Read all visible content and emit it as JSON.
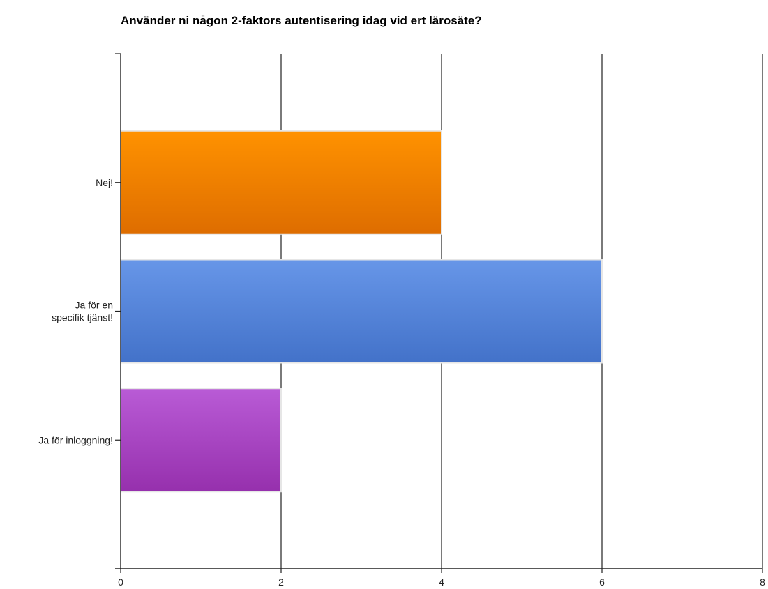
{
  "chart_data": {
    "type": "bar",
    "orientation": "horizontal",
    "title": "Använder ni någon 2-faktors autentisering idag vid ert lärosäte?",
    "xlabel": "",
    "ylabel": "",
    "categories": [
      [
        "Nej!"
      ],
      [
        "Ja för en",
        "specifik tjänst!"
      ],
      [
        "Ja för inloggning!"
      ]
    ],
    "values": [
      4,
      6,
      2
    ],
    "xlim": [
      0,
      8
    ],
    "ticks": [
      "0",
      "2",
      "4",
      "6",
      "8"
    ],
    "grid": true,
    "legend": "none",
    "colors": [
      {
        "top": "#ff9200",
        "bottom": "#de6d00"
      },
      {
        "top": "#6796e8",
        "bottom": "#4372c9"
      },
      {
        "top": "#b95bd6",
        "bottom": "#9630ad"
      }
    ]
  }
}
